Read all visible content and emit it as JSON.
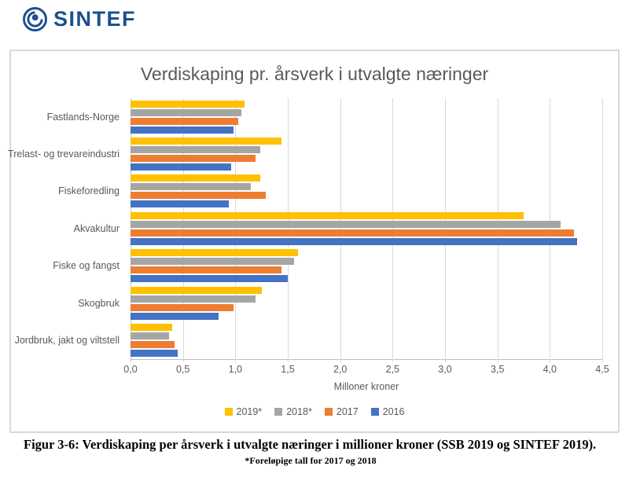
{
  "logo": {
    "text": "SINTEF",
    "color": "#1d4f91"
  },
  "chart_data": {
    "type": "bar",
    "orientation": "horizontal",
    "title": "Verdiskaping pr. årsverk i utvalgte næringer",
    "xlabel": "Milloner kroner",
    "xlim": [
      0,
      4.5
    ],
    "xticks": [
      "0,0",
      "0,5",
      "1,0",
      "1,5",
      "2,0",
      "2,5",
      "3,0",
      "3,5",
      "4,0",
      "4,5"
    ],
    "grid": true,
    "legend_position": "bottom",
    "categories": [
      "Fastlands-Norge",
      "Trelast- og trevareindustri",
      "Fiskeforedling",
      "Akvakultur",
      "Fiske og fangst",
      "Skogbruk",
      "Jordbruk, jakt og viltstell"
    ],
    "series": [
      {
        "name": "2019*",
        "color": "#FFC000",
        "values": [
          1.09,
          1.44,
          1.24,
          3.75,
          1.6,
          1.25,
          0.4
        ]
      },
      {
        "name": "2018*",
        "color": "#A5A5A5",
        "values": [
          1.06,
          1.24,
          1.15,
          4.1,
          1.56,
          1.19,
          0.37
        ]
      },
      {
        "name": "2017",
        "color": "#ED7D31",
        "values": [
          1.03,
          1.19,
          1.29,
          4.23,
          1.44,
          0.98,
          0.42
        ]
      },
      {
        "name": "2016",
        "color": "#4472C4",
        "values": [
          0.98,
          0.96,
          0.94,
          4.26,
          1.5,
          0.84,
          0.45
        ]
      }
    ]
  },
  "caption": {
    "line1": "Figur 3-6: Verdiskaping per årsverk i utvalgte næringer i millioner kroner (SSB 2019 og SINTEF 2019).",
    "line2": "*Foreløpige tall for 2017 og 2018"
  }
}
